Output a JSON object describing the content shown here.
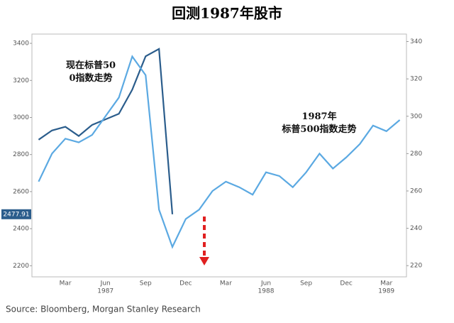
{
  "chart_data": {
    "type": "line",
    "title": "回测1987年股市",
    "categories": [
      null,
      null,
      "Mar",
      null,
      null,
      "Jun",
      null,
      null,
      "Sep",
      null,
      null,
      "Dec",
      null,
      null,
      "Mar",
      null,
      null,
      "Jun",
      null,
      null,
      "Sep",
      null,
      null,
      "Dec",
      null,
      null,
      "Mar",
      null
    ],
    "year_labels": [
      null,
      null,
      null,
      null,
      null,
      "1987",
      null,
      null,
      null,
      null,
      null,
      null,
      null,
      null,
      null,
      null,
      null,
      "1988",
      null,
      null,
      null,
      null,
      null,
      null,
      null,
      null,
      "1989",
      null
    ],
    "series": [
      {
        "name": "现在标普500指数走势",
        "color": "#2b5d8c",
        "axis": "y",
        "values": [
          2880,
          2930,
          2950,
          2900,
          2960,
          2990,
          3020,
          3150,
          3330,
          3370,
          2477.91,
          null,
          null,
          null,
          null,
          null,
          null,
          null,
          null,
          null,
          null,
          null,
          null,
          null,
          null,
          null,
          null,
          null
        ]
      },
      {
        "name": "1987年标普500指数走势",
        "color": "#5ba9e2",
        "axis": "y2",
        "values": [
          265,
          280,
          288,
          286,
          290,
          300,
          310,
          332,
          322,
          250,
          230,
          245,
          250,
          260,
          265,
          262,
          258,
          270,
          268,
          262,
          270,
          280,
          272,
          278,
          285,
          295,
          292,
          298
        ]
      }
    ],
    "ylim": [
      2140,
      3450
    ],
    "yticks": [
      2200,
      2400,
      2600,
      2800,
      3000,
      3200,
      3400
    ],
    "y2lim": [
      214,
      344
    ],
    "y2ticks": [
      220,
      240,
      260,
      280,
      300,
      320,
      340
    ],
    "last_value_label": "2477.91",
    "source": "Source: Bloomberg, Morgan Stanley Research"
  }
}
